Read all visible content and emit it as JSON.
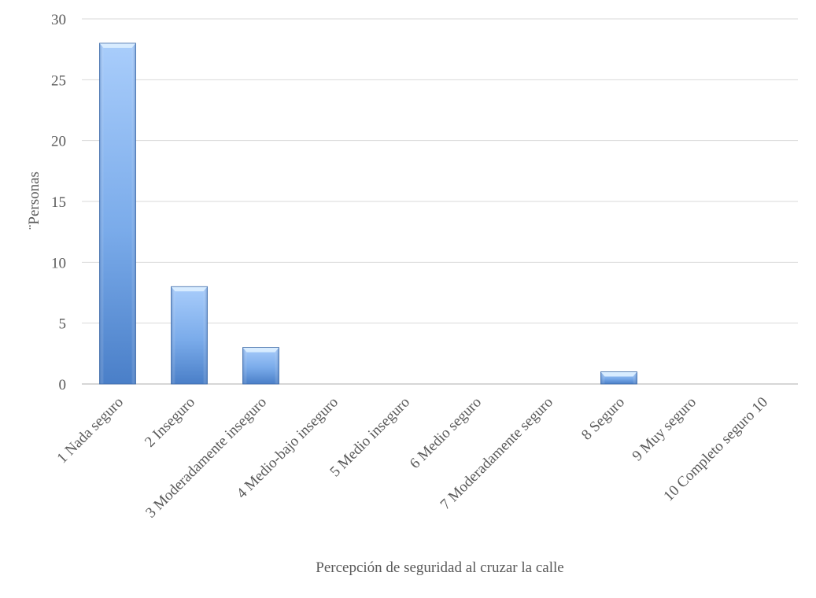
{
  "chart_data": {
    "type": "bar",
    "categories": [
      "1 Nada seguro",
      "2 Inseguro",
      "3 Moderadamente inseguro",
      "4 Medio-bajo inseguro",
      "5 Medio inseguro",
      "6 Medio seguro",
      "7 Moderadamente seguro",
      "8 Seguro",
      "9 Muy seguro",
      "10 Completo seguro 10"
    ],
    "values": [
      28,
      8,
      3,
      0,
      0,
      0,
      0,
      1,
      0,
      0
    ],
    "title": "",
    "xlabel": "Percepción de seguridad al cruzar la calle",
    "ylabel": "¨Personas",
    "ylim": [
      0,
      30
    ],
    "yticks": [
      0,
      5,
      10,
      15,
      20,
      25,
      30
    ],
    "grid": true,
    "legend": "none",
    "colors": {
      "bar_dark": "#4a7fc8",
      "bar_mid": "#7aabea",
      "bar_light": "#a9cdfb",
      "bar_top": "#d8ecff",
      "grid": "#d9d9d9",
      "text": "#595959"
    }
  }
}
